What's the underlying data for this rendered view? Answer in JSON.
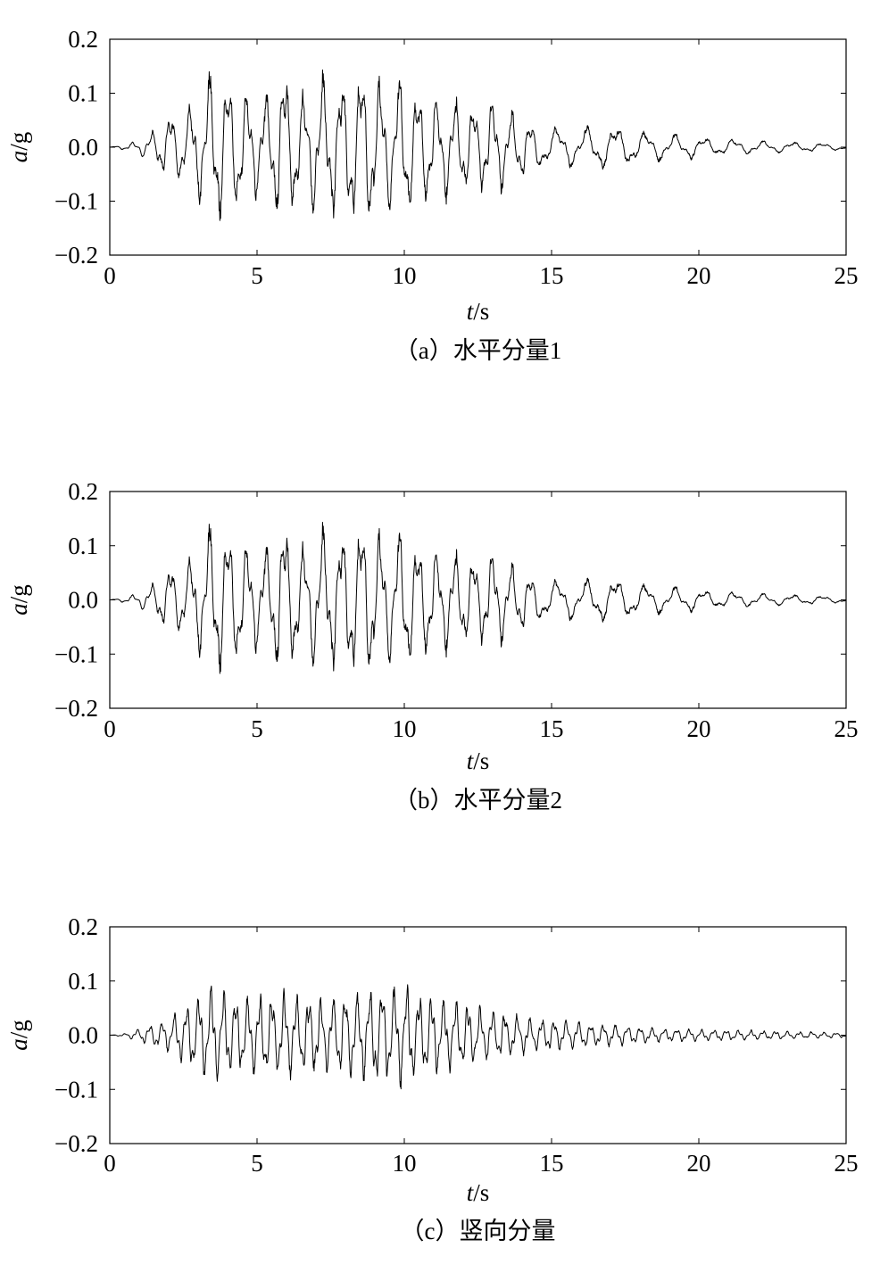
{
  "chart_data": [
    {
      "type": "line",
      "caption": "（a）水平分量1",
      "xlabel_var": "t",
      "xlabel_unit": "/s",
      "ylabel_var": "a",
      "ylabel_unit": "/g",
      "xlim": [
        0,
        25
      ],
      "ylim": [
        -0.2,
        0.2
      ],
      "xticks": [
        "0",
        "5",
        "10",
        "15",
        "20",
        "25"
      ],
      "yticks": [
        "0.2",
        "0.1",
        "0.0",
        "−0.1",
        "−0.2"
      ],
      "grid": false,
      "series": [
        {
          "x": [
            0,
            0.5,
            1.0,
            1.5,
            2.0,
            2.5,
            3.0,
            3.3,
            3.6,
            3.9,
            4.3,
            4.7,
            5.0,
            5.5,
            5.8,
            6.2,
            6.6,
            7.0,
            7.4,
            7.8,
            8.2,
            8.6,
            9.0,
            9.4,
            9.7,
            10.0,
            10.5,
            11.0,
            11.5,
            12.0,
            12.5,
            13.0,
            13.5,
            14.0,
            14.5,
            15.0,
            15.5,
            16.0,
            16.5,
            17.0,
            17.5,
            18.0,
            18.5,
            19.0,
            19.5,
            20.0,
            20.5,
            21.0,
            21.5,
            22.0,
            22.5,
            23.0,
            23.5,
            24.0,
            24.5,
            25.0
          ],
          "amplitude": [
            0,
            0.005,
            0.012,
            0.03,
            0.06,
            0.065,
            0.09,
            0.13,
            0.145,
            0.14,
            0.12,
            0.1,
            0.09,
            0.1,
            0.15,
            0.12,
            0.1,
            0.12,
            0.13,
            0.12,
            0.13,
            0.15,
            0.13,
            0.12,
            0.12,
            0.135,
            0.11,
            0.1,
            0.09,
            0.085,
            0.075,
            0.09,
            0.07,
            0.055,
            0.04,
            0.035,
            0.035,
            0.035,
            0.04,
            0.04,
            0.035,
            0.03,
            0.025,
            0.025,
            0.022,
            0.02,
            0.015,
            0.015,
            0.012,
            0.012,
            0.01,
            0.01,
            0.008,
            0.008,
            0.006,
            0.005
          ]
        }
      ]
    },
    {
      "type": "line",
      "caption": "（b）水平分量2",
      "xlabel_var": "t",
      "xlabel_unit": "/s",
      "ylabel_var": "a",
      "ylabel_unit": "/g",
      "xlim": [
        0,
        25
      ],
      "ylim": [
        -0.2,
        0.2
      ],
      "xticks": [
        "0",
        "5",
        "10",
        "15",
        "20",
        "25"
      ],
      "yticks": [
        "0.2",
        "0.1",
        "0.0",
        "−0.1",
        "−0.2"
      ],
      "grid": false,
      "series": [
        {
          "x": [
            0,
            0.5,
            1.0,
            1.5,
            2.0,
            2.5,
            3.0,
            3.3,
            3.6,
            3.9,
            4.3,
            4.7,
            5.0,
            5.5,
            5.8,
            6.2,
            6.6,
            7.0,
            7.4,
            7.8,
            8.2,
            8.6,
            9.0,
            9.4,
            9.7,
            10.0,
            10.5,
            11.0,
            11.5,
            12.0,
            12.5,
            13.0,
            13.5,
            14.0,
            14.5,
            15.0,
            15.5,
            16.0,
            16.5,
            17.0,
            17.5,
            18.0,
            18.5,
            19.0,
            19.5,
            20.0,
            20.5,
            21.0,
            21.5,
            22.0,
            22.5,
            23.0,
            23.5,
            24.0,
            24.5,
            25.0
          ],
          "amplitude": [
            0,
            0.005,
            0.012,
            0.03,
            0.06,
            0.065,
            0.09,
            0.13,
            0.145,
            0.14,
            0.12,
            0.1,
            0.09,
            0.1,
            0.15,
            0.12,
            0.1,
            0.12,
            0.13,
            0.12,
            0.13,
            0.15,
            0.13,
            0.12,
            0.12,
            0.135,
            0.11,
            0.1,
            0.09,
            0.085,
            0.075,
            0.09,
            0.07,
            0.055,
            0.04,
            0.035,
            0.035,
            0.035,
            0.04,
            0.04,
            0.035,
            0.03,
            0.025,
            0.025,
            0.022,
            0.02,
            0.015,
            0.015,
            0.012,
            0.012,
            0.01,
            0.01,
            0.008,
            0.008,
            0.006,
            0.005
          ]
        }
      ]
    },
    {
      "type": "line",
      "caption": "（c）竖向分量",
      "xlabel_var": "t",
      "xlabel_unit": "/s",
      "ylabel_var": "a",
      "ylabel_unit": "/g",
      "xlim": [
        0,
        25
      ],
      "ylim": [
        -0.2,
        0.2
      ],
      "xticks": [
        "0",
        "5",
        "10",
        "15",
        "20",
        "25"
      ],
      "yticks": [
        "0.2",
        "0.1",
        "0.0",
        "−0.1",
        "−0.2"
      ],
      "grid": false,
      "series": [
        {
          "x": [
            0,
            0.5,
            1.0,
            1.5,
            2.0,
            2.5,
            3.0,
            3.5,
            4.0,
            4.5,
            5.0,
            5.5,
            6.0,
            6.5,
            7.0,
            7.5,
            8.0,
            8.5,
            9.0,
            9.5,
            10.0,
            10.5,
            11.0,
            11.5,
            12.0,
            12.5,
            13.0,
            13.5,
            14.0,
            14.5,
            15.0,
            15.5,
            16.0,
            16.5,
            17.0,
            17.5,
            18.0,
            18.5,
            19.0,
            19.5,
            20.0,
            20.5,
            21.0,
            21.5,
            22.0,
            22.5,
            23.0,
            23.5,
            24.0,
            24.5,
            25.0
          ],
          "amplitude": [
            0,
            0.003,
            0.012,
            0.022,
            0.03,
            0.05,
            0.07,
            0.09,
            0.08,
            0.07,
            0.07,
            0.075,
            0.08,
            0.07,
            0.07,
            0.07,
            0.075,
            0.075,
            0.09,
            0.085,
            0.1,
            0.075,
            0.07,
            0.065,
            0.06,
            0.05,
            0.045,
            0.04,
            0.035,
            0.03,
            0.03,
            0.025,
            0.025,
            0.02,
            0.02,
            0.018,
            0.015,
            0.013,
            0.012,
            0.012,
            0.01,
            0.01,
            0.01,
            0.009,
            0.008,
            0.008,
            0.007,
            0.006,
            0.006,
            0.005,
            0.004
          ]
        }
      ]
    }
  ]
}
